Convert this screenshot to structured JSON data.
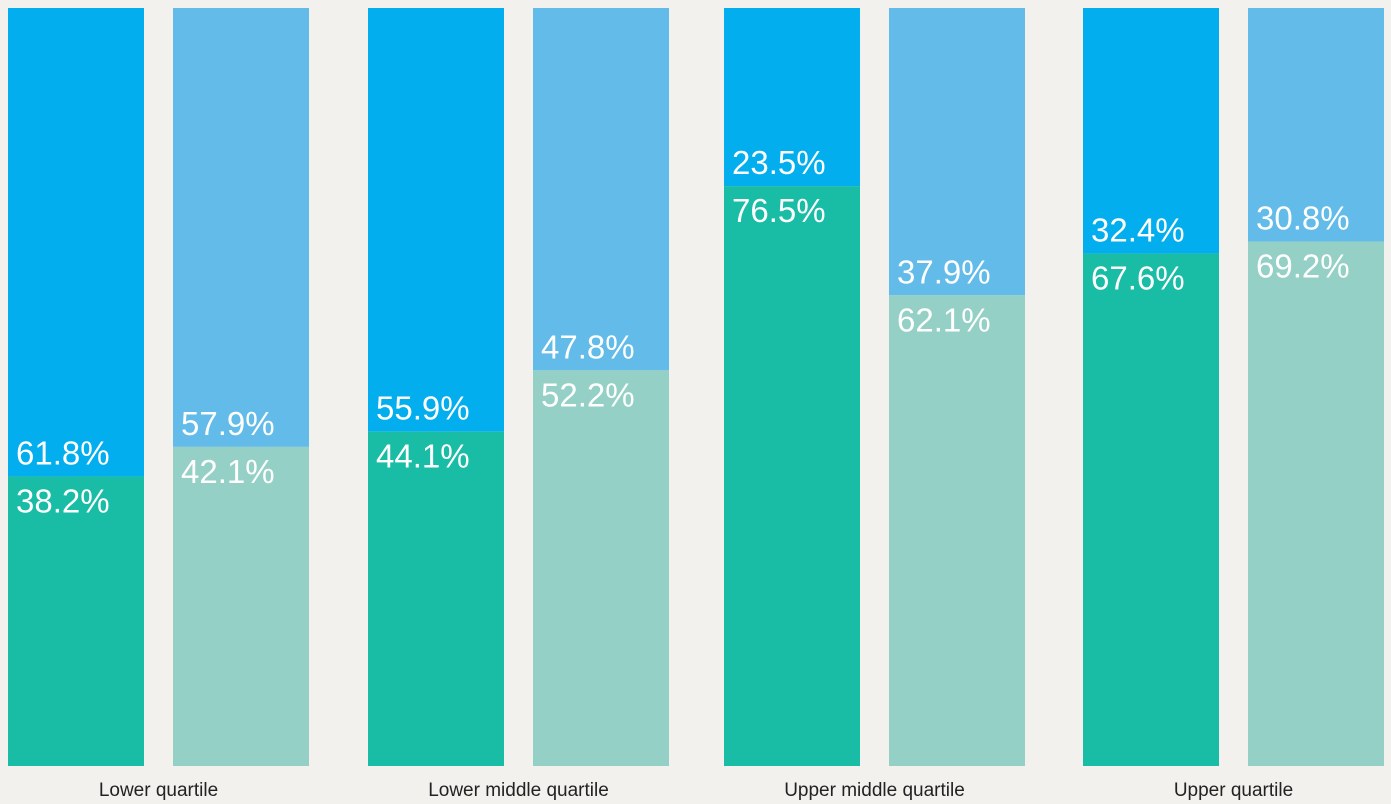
{
  "chart_data": {
    "type": "bar",
    "stacked": true,
    "categories": [
      "Lower quartile",
      "Lower middle quartile",
      "Upper middle quartile",
      "Upper quartile"
    ],
    "bars_per_category": 2,
    "series": [
      {
        "values": [
          [
            38.2,
            42.1
          ],
          [
            44.1,
            52.2
          ],
          [
            76.5,
            62.1
          ],
          [
            67.6,
            69.2
          ]
        ],
        "colors": [
          "#19bca4",
          "#94d0c5"
        ]
      },
      {
        "values": [
          [
            61.8,
            57.9
          ],
          [
            55.9,
            47.8
          ],
          [
            23.5,
            37.9
          ],
          [
            32.4,
            30.8
          ]
        ],
        "colors": [
          "#02aeee",
          "#62bbe8"
        ]
      }
    ],
    "value_labels": {
      "bottom": [
        [
          "38.2%",
          "42.1%"
        ],
        [
          "44.1%",
          "52.2%"
        ],
        [
          "76.5%",
          "62.1%"
        ],
        [
          "67.6%",
          "69.2%"
        ]
      ],
      "top": [
        [
          "61.8%",
          "57.9%"
        ],
        [
          "55.9%",
          "47.8%"
        ],
        [
          "23.5%",
          "37.9%"
        ],
        [
          "32.4%",
          "30.8%"
        ]
      ]
    },
    "ylim": [
      0,
      100
    ],
    "legend": "none",
    "grid": false
  }
}
